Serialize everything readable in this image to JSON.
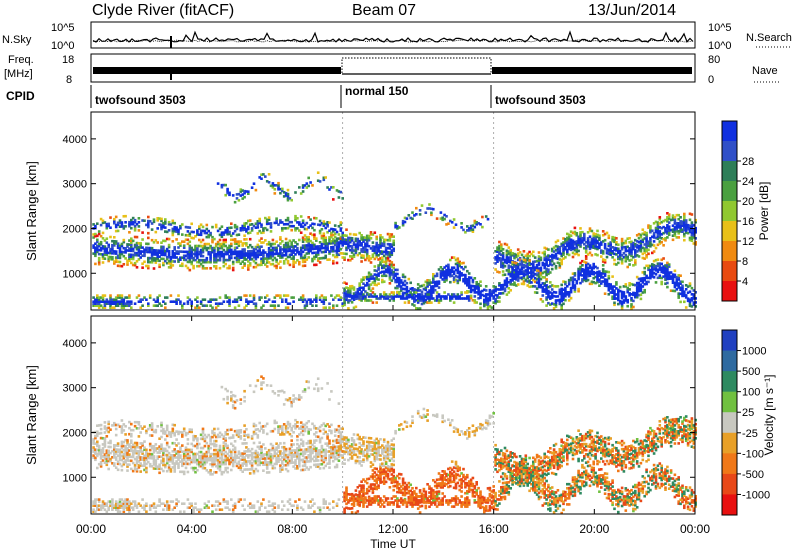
{
  "header": {
    "station": "Clyde River (fitACF)",
    "beam": "Beam 07",
    "date": "13/Jun/2014"
  },
  "chart_data": [
    {
      "type": "line",
      "panel": "nsky-nsearch",
      "left_label": "N.Sky",
      "right_label": "N.Search",
      "left_ticks": [
        "10^5",
        "10^0"
      ],
      "right_ticks": [
        "10^5",
        "10^0"
      ]
    },
    {
      "type": "line",
      "panel": "freq-nave",
      "left_label_top": "Freq.",
      "left_label_bottom": "[MHz]",
      "left_ticks": [
        "18",
        "8"
      ],
      "right_label": "Nave",
      "right_ticks": [
        "80",
        "0"
      ]
    },
    {
      "type": "table",
      "panel": "cpid",
      "label": "CPID",
      "segments": [
        {
          "label": "twofsound 3503",
          "start": 0,
          "end": 10
        },
        {
          "label": "normal 150",
          "start": 10,
          "end": 16
        },
        {
          "label": "twofsound 3503",
          "start": 16,
          "end": 24
        }
      ]
    },
    {
      "type": "heatmap",
      "panel": "power",
      "ylabel": "Slant Range [km]",
      "yticks": [
        "1000",
        "2000",
        "3000",
        "4000"
      ],
      "ylim": [
        180,
        4600
      ],
      "xlim": [
        0,
        24
      ],
      "colorbar_label": "Power [dB]",
      "colorbar_ticks": [
        "4",
        "8",
        "12",
        "16",
        "20",
        "24",
        "28"
      ],
      "colorbar_colors": [
        "#1030e0",
        "#3050c8",
        "#2e7e58",
        "#4aa040",
        "#90c830",
        "#e8c018",
        "#f08a10",
        "#e84a10",
        "#e81010"
      ]
    },
    {
      "type": "heatmap",
      "panel": "velocity",
      "ylabel": "Slant Range [km]",
      "yticks": [
        "1000",
        "2000",
        "3000",
        "4000"
      ],
      "ylim": [
        180,
        4600
      ],
      "xlim": [
        0,
        24
      ],
      "xlabel": "Time UT",
      "xticks": [
        "00:00",
        "04:00",
        "08:00",
        "12:00",
        "16:00",
        "20:00",
        "00:00"
      ],
      "colorbar_label": "Velocity [m s⁻¹]",
      "colorbar_ticks": [
        "1000",
        "500",
        "100",
        "25",
        "-25",
        "-100",
        "-500",
        "-1000"
      ],
      "colorbar_colors": [
        "#2040c0",
        "#2e6aa0",
        "#2e8a60",
        "#70c040",
        "#c8c8c0",
        "#e8a028",
        "#f07818",
        "#e84818",
        "#e81010"
      ]
    }
  ]
}
